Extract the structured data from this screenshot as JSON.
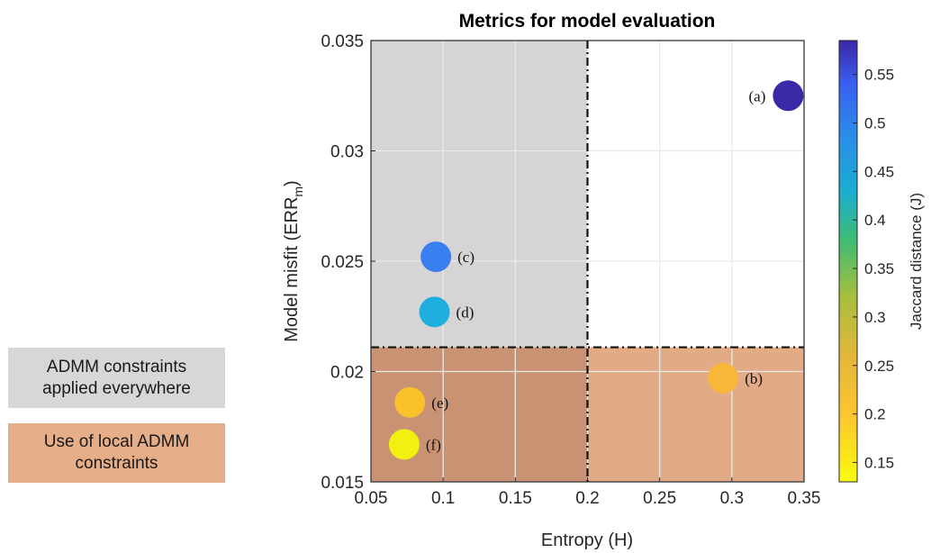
{
  "legend": {
    "gray_label": "ADMM constraints\napplied everywhere",
    "orange_label": "Use of local ADMM\nconstraints",
    "gray_color": "#d8d6d7",
    "orange_color": "#e5ad88"
  },
  "chart_data": {
    "type": "scatter",
    "title": "Metrics for model evaluation",
    "xlabel": "Entropy (H)",
    "ylabel": "Model misfit (ERR",
    "ylabel_sub": "m",
    "ylabel_close": ")",
    "colorbar_label": "Jaccard distance (J)",
    "xlim": [
      0.05,
      0.35
    ],
    "ylim": [
      0.015,
      0.035
    ],
    "xticks": [
      "0.05",
      "0.1",
      "0.15",
      "0.2",
      "0.25",
      "0.3",
      "0.35"
    ],
    "yticks": [
      "0.015",
      "0.02",
      "0.025",
      "0.03",
      "0.035"
    ],
    "clim": [
      0.13,
      0.585
    ],
    "colorbar_ticks": [
      "0.15",
      "0.2",
      "0.25",
      "0.3",
      "0.35",
      "0.4",
      "0.45",
      "0.5",
      "0.55"
    ],
    "grid": true,
    "threshold_x": 0.2,
    "threshold_y": 0.0211,
    "region_colors": {
      "upper_left": "#d6d4d5",
      "lower_left": "#c99373",
      "lower_right": "#e3aa86"
    },
    "points": [
      {
        "label": "(a)",
        "x": 0.339,
        "y": 0.0325,
        "j": 0.575,
        "color": "#3a2aa8"
      },
      {
        "label": "(b)",
        "x": 0.294,
        "y": 0.0197,
        "j": 0.2,
        "color": "#f7b83a"
      },
      {
        "label": "(c)",
        "x": 0.095,
        "y": 0.0252,
        "j": 0.46,
        "color": "#3a7ff0"
      },
      {
        "label": "(d)",
        "x": 0.094,
        "y": 0.0227,
        "j": 0.375,
        "color": "#1faede"
      },
      {
        "label": "(e)",
        "x": 0.077,
        "y": 0.0186,
        "j": 0.2,
        "color": "#f9c22b"
      },
      {
        "label": "(f)",
        "x": 0.073,
        "y": 0.0167,
        "j": 0.14,
        "color": "#f2f011"
      }
    ]
  }
}
